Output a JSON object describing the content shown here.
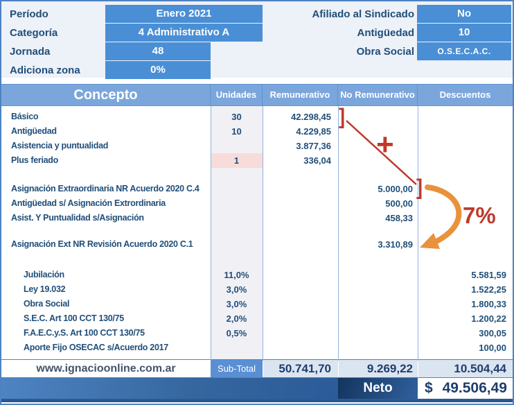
{
  "colors": {
    "field_blue": "#4a8fd5",
    "header_blue": "#7ba6dc",
    "text_navy": "#1f4e79",
    "subtotal_bg": "#dbe5f1",
    "highlight_pink": "#f8dcda",
    "annotation_red": "#c0392b",
    "annotation_orange": "#e8923c"
  },
  "form": {
    "left": [
      {
        "label": "Período",
        "value": "Enero 2021"
      },
      {
        "label": "Categoría",
        "value": "4 Administrativo A"
      },
      {
        "label": "Jornada",
        "value": "48"
      },
      {
        "label": "Adiciona zona",
        "value": "0%"
      }
    ],
    "right": [
      {
        "label": "Afiliado al Sindicado",
        "value": "No"
      },
      {
        "label": "Antigüedad",
        "value": "10"
      },
      {
        "label": "Obra Social",
        "value": "O.S.E.C.A.C."
      }
    ]
  },
  "table": {
    "headers": {
      "concepto": "Concepto",
      "unidades": "Unidades",
      "remunerativo": "Remunerativo",
      "no_remunerativo": "No Remunerativo",
      "descuentos": "Descuentos"
    },
    "rows": [
      {
        "concepto": "Básico",
        "unidades": "30",
        "remunerativo": "42.298,45",
        "no_remunerativo": "",
        "descuentos": ""
      },
      {
        "concepto": "Antigüedad",
        "unidades": "10",
        "remunerativo": "4.229,85",
        "no_remunerativo": "",
        "descuentos": ""
      },
      {
        "concepto": "Asistencia y puntualidad",
        "unidades": "",
        "remunerativo": "3.877,36",
        "no_remunerativo": "",
        "descuentos": ""
      },
      {
        "concepto": "Plus feriado",
        "unidades": "1",
        "remunerativo": "336,04",
        "no_remunerativo": "",
        "descuentos": "",
        "highlight_unidades": true
      },
      {
        "spacer": "s"
      },
      {
        "concepto": "Asignación Extraordinaria NR Acuerdo 2020 C.4",
        "unidades": "",
        "remunerativo": "",
        "no_remunerativo": "5.000,00",
        "descuentos": ""
      },
      {
        "concepto": "Antigüedad s/ Asignación  Extrordinaria",
        "unidades": "",
        "remunerativo": "",
        "no_remunerativo": "500,00",
        "descuentos": ""
      },
      {
        "concepto": "Asist. Y Puntualidad s/Asignación",
        "unidades": "",
        "remunerativo": "",
        "no_remunerativo": "458,33",
        "descuentos": ""
      },
      {
        "spacer": "m"
      },
      {
        "concepto": "Asignación Ext NR Revisión Acuerdo 2020 C.1",
        "unidades": "",
        "remunerativo": "",
        "no_remunerativo": "3.310,89",
        "descuentos": ""
      },
      {
        "spacer": "l"
      },
      {
        "concepto": "Jubilación",
        "unidades": "11,0%",
        "remunerativo": "",
        "no_remunerativo": "",
        "descuentos": "5.581,59",
        "indent": true
      },
      {
        "concepto": "Ley 19.032",
        "unidades": "3,0%",
        "remunerativo": "",
        "no_remunerativo": "",
        "descuentos": "1.522,25",
        "indent": true
      },
      {
        "concepto": "Obra Social",
        "unidades": "3,0%",
        "remunerativo": "",
        "no_remunerativo": "",
        "descuentos": "1.800,33",
        "indent": true
      },
      {
        "concepto": "S.E.C. Art 100 CCT 130/75",
        "unidades": "2,0%",
        "remunerativo": "",
        "no_remunerativo": "",
        "descuentos": "1.200,22",
        "indent": true
      },
      {
        "concepto": "F.A.E.C.y.S. Art 100 CCT 130/75",
        "unidades": "0,5%",
        "remunerativo": "",
        "no_remunerativo": "",
        "descuentos": "300,05",
        "indent": true
      },
      {
        "concepto": "Aporte Fijo OSECAC s/Acuerdo 2017",
        "unidades": "",
        "remunerativo": "",
        "no_remunerativo": "",
        "descuentos": "100,00",
        "indent": true
      }
    ]
  },
  "footer": {
    "website": "www.ignacioonline.com.ar",
    "subtotal_label": "Sub-Total",
    "subtotals": {
      "remunerativo": "50.741,70",
      "no_remunerativo": "9.269,22",
      "descuentos": "10.504,44"
    },
    "neto_label": "Neto",
    "neto_currency": "$",
    "neto_value": "49.506,49"
  },
  "annotations": {
    "bracket_basico": "]",
    "bracket_asignacion": "]",
    "plus_sign": "+",
    "percent_label": "7%"
  }
}
